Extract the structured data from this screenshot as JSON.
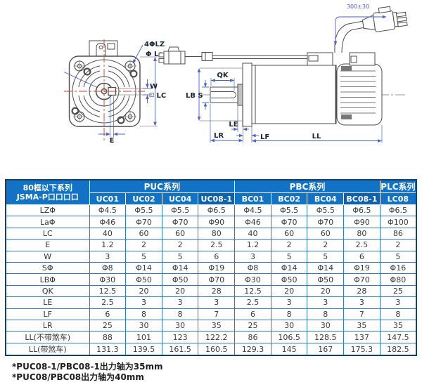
{
  "diagram": {
    "labels": {
      "front_hole": "4ΦLZ",
      "front_la": "Φ La",
      "w": "W",
      "lc": "LC",
      "e": "E",
      "qk": "QK",
      "s": "S",
      "lb": "LB",
      "le": "LE",
      "lr": "LR",
      "lf": "LF",
      "ll": "LL",
      "cable": "300±30"
    },
    "colors": {
      "line": "#4d4d4d",
      "dim": "#4a63c8",
      "center": "#d03a34"
    }
  },
  "table": {
    "corner_line1": "80框以下系列",
    "corner_line2": "JSMA-P口口口口",
    "groups": [
      {
        "label": "PUC系列",
        "span": 4
      },
      {
        "label": "PBC系列",
        "span": 4
      },
      {
        "label": "PLC系列",
        "span": 1
      }
    ],
    "models": [
      "UC01",
      "UC02",
      "UC04",
      "UC08-1",
      "BC01",
      "BC02",
      "BC04",
      "BC08-1",
      "LC08"
    ],
    "dark_models": [
      "UC08-1",
      "BC08-1"
    ],
    "rows": [
      {
        "label": "LZΦ",
        "values": [
          "Φ4.5",
          "Φ5.5",
          "Φ5.5",
          "Φ6.5",
          "Φ4.5",
          "Φ5.5",
          "Φ5.5",
          "Φ6.5",
          "Φ6.5"
        ]
      },
      {
        "label": "LaΦ",
        "values": [
          "Φ46",
          "Φ70",
          "Φ70",
          "Φ90",
          "Φ46",
          "Φ70",
          "Φ70",
          "Φ90",
          "Φ100"
        ]
      },
      {
        "label": "LC",
        "values": [
          "40",
          "60",
          "60",
          "80",
          "40",
          "60",
          "60",
          "80",
          "86"
        ]
      },
      {
        "label": "E",
        "values": [
          "1.2",
          "2",
          "2",
          "2.5",
          "1.2",
          "2",
          "2",
          "2.5",
          "2"
        ]
      },
      {
        "label": "W",
        "values": [
          "3",
          "5",
          "5",
          "6",
          "3",
          "5",
          "5",
          "6",
          "5"
        ]
      },
      {
        "label": "SΦ",
        "values": [
          "Φ8",
          "Φ14",
          "Φ14",
          "Φ19",
          "Φ8",
          "Φ14",
          "Φ14",
          "Φ19",
          "Φ16"
        ]
      },
      {
        "label": "LBΦ",
        "values": [
          "Φ30",
          "Φ50",
          "Φ50",
          "Φ70",
          "Φ30",
          "Φ50",
          "Φ50",
          "Φ70",
          "Φ80"
        ]
      },
      {
        "label": "QK",
        "values": [
          "12.5",
          "20",
          "20",
          "28",
          "12.5",
          "20",
          "20",
          "28",
          "25"
        ]
      },
      {
        "label": "LE",
        "values": [
          "2.5",
          "3",
          "3",
          "3",
          "2.5",
          "3",
          "3",
          "3",
          "3"
        ]
      },
      {
        "label": "LF",
        "values": [
          "6",
          "8",
          "8",
          "7",
          "6",
          "8",
          "8",
          "7",
          "8"
        ]
      },
      {
        "label": "LR",
        "values": [
          "25",
          "30",
          "30",
          "35",
          "25",
          "30",
          "30",
          "35",
          "35"
        ]
      },
      {
        "label": "LL(不带煞车)",
        "values": [
          "88",
          "101",
          "123",
          "122.2",
          "86",
          "106.5",
          "128.5",
          "137",
          "147.5"
        ]
      },
      {
        "label": "LL(带煞车)",
        "values": [
          "131.3",
          "139.5",
          "161.5",
          "160.5",
          "129.3",
          "145",
          "167",
          "175.3",
          "182.5"
        ]
      }
    ]
  },
  "notes": [
    "*PUC08-1/PBC08-1出力轴为35mm",
    "*PUC08/PBC08出力轴为40mm"
  ]
}
